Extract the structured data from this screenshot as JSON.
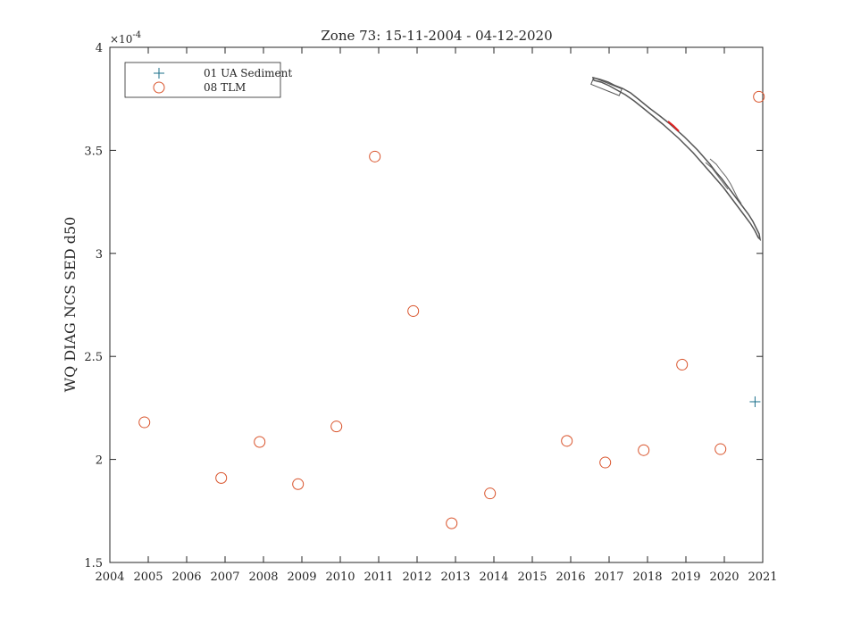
{
  "chart_data": {
    "type": "scatter",
    "title": "Zone 73: 15-11-2004 - 04-12-2020",
    "xlabel": "",
    "ylabel": "WQ DIAG NCS SED d50",
    "y_multiplier_label": "×10",
    "y_multiplier_exponent": "-4",
    "xlim": [
      2004,
      2021
    ],
    "ylim": [
      1.5,
      4.0
    ],
    "x_ticks": [
      "2004",
      "2005",
      "2006",
      "2007",
      "2008",
      "2009",
      "2010",
      "2011",
      "2012",
      "2013",
      "2014",
      "2015",
      "2016",
      "2017",
      "2018",
      "2019",
      "2020",
      "2021"
    ],
    "y_ticks": [
      "1.5",
      "2",
      "2.5",
      "3",
      "3.5",
      "4"
    ],
    "grid": false,
    "legend_position": "top-left",
    "series": [
      {
        "name": "01 UA Sediment",
        "marker": "plus",
        "color": "#1a6f8a",
        "x": [
          2020.8
        ],
        "y": [
          2.28
        ]
      },
      {
        "name": "08 TLM",
        "marker": "circle",
        "color": "#d9532b",
        "x": [
          2004.9,
          2006.9,
          2007.9,
          2008.9,
          2009.9,
          2010.9,
          2011.9,
          2012.9,
          2013.9,
          2015.9,
          2016.9,
          2017.9,
          2018.9,
          2019.9,
          2020.9
        ],
        "y": [
          2.18,
          1.91,
          2.085,
          1.88,
          2.16,
          3.47,
          2.72,
          1.69,
          1.835,
          2.09,
          1.985,
          2.045,
          2.46,
          2.05,
          3.76
        ]
      }
    ]
  },
  "colors": {
    "axis": "#262626",
    "map_outline": "#555555",
    "map_highlight": "#e02020"
  }
}
